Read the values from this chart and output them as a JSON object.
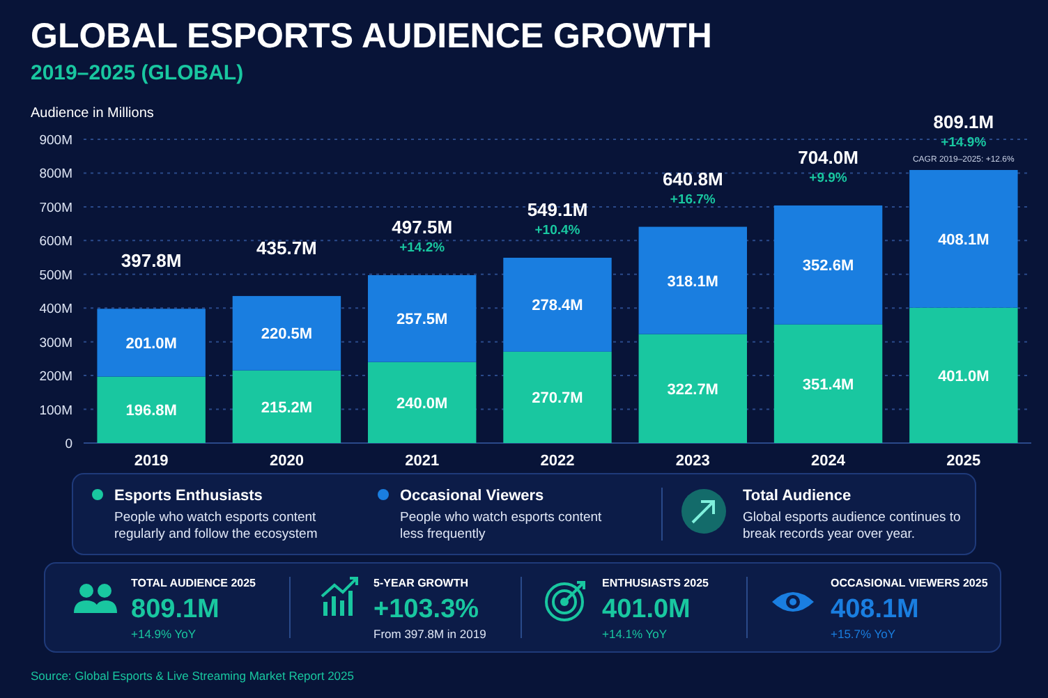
{
  "chart_data": {
    "type": "bar",
    "title": "GLOBAL ESPORTS AUDIENCE GROWTH",
    "subtitle": "2019–2025 (GLOBAL)",
    "ylabel": "Audience in Millions",
    "categories": [
      "2019",
      "2020",
      "2021",
      "2022",
      "2023",
      "2024",
      "2025"
    ],
    "stacked": true,
    "grid": "y",
    "legend": "bottom",
    "data_labels": true,
    "ylim": [
      0,
      900
    ],
    "yticks": [
      0,
      {
        "value": 100,
        "label": "100M"
      },
      {
        "value": 200,
        "label": "200M"
      },
      {
        "value": 300,
        "label": "300M"
      },
      {
        "value": 400,
        "label": "400M"
      },
      {
        "value": 500,
        "label": "500M"
      },
      {
        "value": 600,
        "label": "600M"
      },
      {
        "value": 700,
        "label": "700M"
      },
      {
        "value": 800,
        "label": "800M"
      },
      {
        "value": 900,
        "label": "900M"
      }
    ],
    "series": [
      {
        "name": "Esports Enthusiasts",
        "color": "#19c7a0",
        "values": [
          196.8,
          215.2,
          240.0,
          270.7,
          322.7,
          351.4,
          401.0
        ],
        "value_labels": [
          "196.8M",
          "215.2M",
          "240.0M",
          "270.7M",
          "322.7M",
          "351.4M",
          "401.0M"
        ]
      },
      {
        "name": "Occasional Viewers",
        "color": "#1a7ee0",
        "values": [
          201.0,
          220.5,
          257.5,
          278.4,
          318.1,
          352.6,
          408.1
        ],
        "value_labels": [
          "201.0M",
          "220.5M",
          "257.5M",
          "278.4M",
          "318.1M",
          "352.6M",
          "408.1M"
        ]
      }
    ],
    "totals": [
      "397.8M",
      "435.7M",
      "497.5M",
      "549.1M",
      "640.8M",
      "704.0M",
      "809.1M"
    ],
    "annotations": [
      {
        "text": "+14.2%",
        "x": "2021",
        "y": 497.5
      },
      {
        "text": "+10.4%",
        "x": "2022",
        "y": 549.1
      },
      {
        "text": "+16.7%",
        "x": "2023",
        "y": 640.8
      },
      {
        "text": "+9.9%",
        "x": "2024",
        "y": 704.0
      },
      {
        "text": "+14.9%",
        "x": "2025",
        "y": 809.1
      },
      "CAGR 2019–2025: +12.6%",
      "People who watch esports content regularly and follow the ecosystem",
      "People who watch esports content less frequently",
      "Total Audience",
      "Global esports audience continues to break records year over year.",
      "TOTAL AUDIENCE 2025",
      "809.1M",
      "+14.9% YoY",
      "5-YEAR GROWTH",
      "+103.3%",
      "From 397.8M in 2019",
      "ENTHUSIASTS 2025",
      "401.0M",
      "+14.1% YoY",
      "OCCASIONAL VIEWERS 2025",
      "408.1M",
      "+15.7% YoY",
      "Source: Global Esports & Live Streaming Market Report 2025"
    ]
  }
}
